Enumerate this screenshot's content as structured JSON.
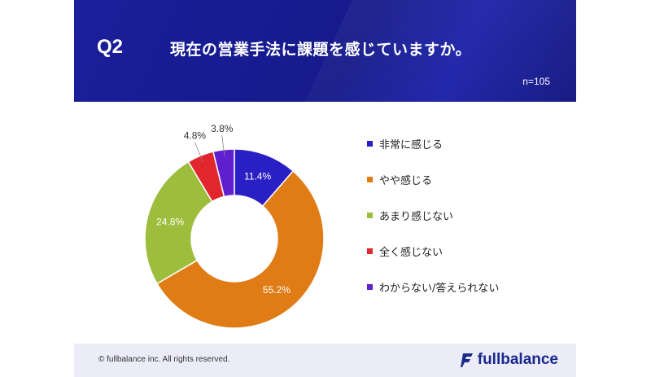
{
  "header": {
    "question_label": "Q2",
    "question_text": "現在の営業手法に課題を感じていますか。",
    "sample_size": "n=105"
  },
  "chart_data": {
    "type": "pie",
    "donut": true,
    "categories": [
      "非常に感じる",
      "やや感じる",
      "あまり感じない",
      "全く感じない",
      "わからない/答えられない"
    ],
    "values": [
      11.4,
      55.2,
      24.8,
      4.8,
      3.8
    ],
    "value_labels": [
      "11.4%",
      "55.2%",
      "24.8%",
      "4.8%",
      "3.8%"
    ],
    "colors": [
      "#2a1fc4",
      "#e07c16",
      "#9dbd3c",
      "#e2262e",
      "#5f1fcf"
    ],
    "legend_position": "right"
  },
  "footer": {
    "copyright": "© fullbalance inc. All rights reserved.",
    "brand_name": "fullbalance",
    "brand_icon": "fullbalance-logo-icon"
  }
}
